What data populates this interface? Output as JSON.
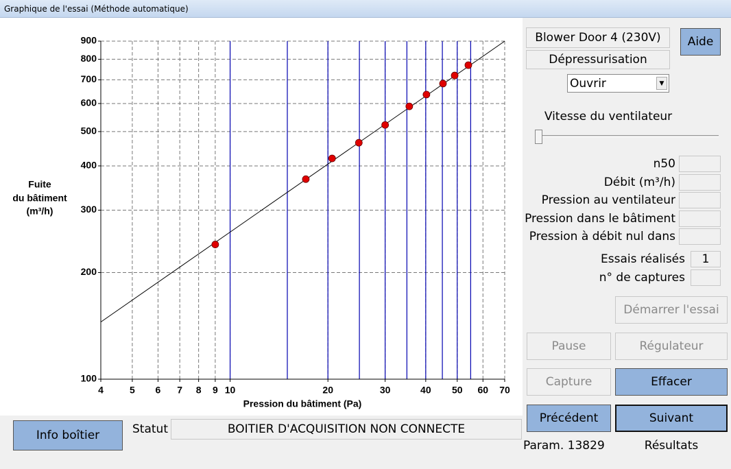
{
  "window": {
    "title": "Graphique de l'essai (Méthode automatique)"
  },
  "chart_data": {
    "type": "scatter",
    "xlabel": "Pression du bâtiment (Pa)",
    "ylabel": [
      "Fuite",
      "du bâtiment",
      "(m³/h)"
    ],
    "xscale": "log",
    "yscale": "log",
    "xlim": [
      4,
      70
    ],
    "ylim": [
      100,
      900
    ],
    "xticks": [
      4,
      5,
      6,
      7,
      8,
      9,
      10,
      20,
      30,
      40,
      50,
      60,
      70
    ],
    "yticks": [
      100,
      200,
      300,
      400,
      500,
      600,
      700,
      800,
      900
    ],
    "grid": true,
    "x": [
      9,
      17.1,
      20.6,
      24.9,
      30,
      35.6,
      40.2,
      45.2,
      49.1,
      54.1
    ],
    "values": [
      240,
      367,
      420,
      465,
      522,
      589,
      636,
      683,
      720,
      770
    ],
    "color": "#e00000",
    "fit": {
      "x": [
        4,
        70
      ],
      "values": [
        145,
        900
      ],
      "color": "#000000"
    },
    "reference_lines": {
      "x": [
        10,
        15,
        20,
        25,
        30,
        35,
        40,
        45,
        50,
        55
      ],
      "color": "#0000b0"
    }
  },
  "panel": {
    "device": "Blower Door 4 (230V)",
    "mode": "Dépressurisation",
    "dropdown": "Ouvrir",
    "help": "Aide",
    "slider_label": "Vitesse du ventilateur",
    "fields": [
      "n50",
      "Débit (m³/h)",
      "Pression au ventilateur",
      "Pression dans le bâtiment",
      "Pression à débit nul dans"
    ],
    "tests_label": "Essais réalisés",
    "tests_value": 1,
    "captures_label": "n° de captures",
    "buttons": {
      "start": "Démarrer l'essai",
      "pause": "Pause",
      "regulator": "Régulateur",
      "capture": "Capture",
      "clear": "Effacer",
      "previous": "Précédent",
      "next": "Suivant"
    },
    "param": "Param. 13829",
    "results": "Résultats"
  },
  "status": {
    "info_button": "Info boîtier",
    "label": "Statut",
    "text": "BOITIER D'ACQUISITION NON CONNECTE"
  }
}
